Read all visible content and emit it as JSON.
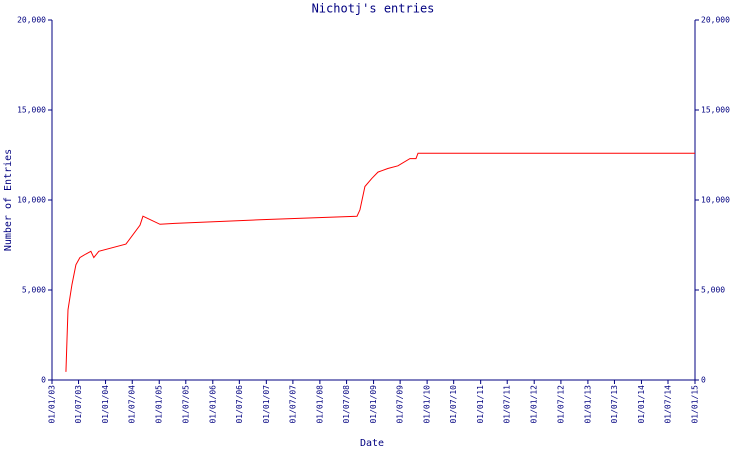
{
  "chart_data": {
    "type": "line",
    "title": "Nichotj's entries",
    "x_label": "Date",
    "y_label": "Number of Entries",
    "x": [
      "2003-04-06",
      "2003-04-13",
      "2003-04-20",
      "2003-05-17",
      "2003-06-13",
      "2003-07-10",
      "2003-08-20",
      "2003-09-23",
      "2003-10-13",
      "2003-11-16",
      "2004-05-19",
      "2004-08-23",
      "2004-09-12",
      "2005-01-06",
      "2005-04-17",
      "2006-11-17",
      "2008-09-10",
      "2008-09-30",
      "2008-11-03",
      "2008-12-20",
      "2009-01-31",
      "2009-04-08",
      "2009-06-16",
      "2009-09-06",
      "2009-10-17",
      "2009-10-31",
      "2015-01-01"
    ],
    "series": [
      {
        "name": "Entries",
        "color": "#ff0000",
        "values": [
          450,
          2200,
          3900,
          5300,
          6400,
          6800,
          7000,
          7150,
          6800,
          7150,
          7550,
          8600,
          9100,
          8650,
          8700,
          8900,
          9100,
          9450,
          10750,
          11200,
          11550,
          11750,
          11900,
          12300,
          12300,
          12600,
          12600
        ]
      }
    ],
    "xlim": [
      "2003-01-01",
      "2015-01-01"
    ],
    "xticks": [
      {
        "value": "2003-01-01",
        "label": "01/01/03"
      },
      {
        "value": "2003-07-01",
        "label": "01/07/03"
      },
      {
        "value": "2004-01-01",
        "label": "01/01/04"
      },
      {
        "value": "2004-07-01",
        "label": "01/07/04"
      },
      {
        "value": "2005-01-01",
        "label": "01/01/05"
      },
      {
        "value": "2005-07-01",
        "label": "01/07/05"
      },
      {
        "value": "2006-01-01",
        "label": "01/01/06"
      },
      {
        "value": "2006-07-01",
        "label": "01/07/06"
      },
      {
        "value": "2007-01-01",
        "label": "01/01/07"
      },
      {
        "value": "2007-07-01",
        "label": "01/07/07"
      },
      {
        "value": "2008-01-01",
        "label": "01/01/08"
      },
      {
        "value": "2008-07-01",
        "label": "01/07/08"
      },
      {
        "value": "2009-01-01",
        "label": "01/01/09"
      },
      {
        "value": "2009-07-01",
        "label": "01/07/09"
      },
      {
        "value": "2010-01-01",
        "label": "01/01/10"
      },
      {
        "value": "2010-07-01",
        "label": "01/07/10"
      },
      {
        "value": "2011-01-01",
        "label": "01/01/11"
      },
      {
        "value": "2011-07-01",
        "label": "01/07/11"
      },
      {
        "value": "2012-01-01",
        "label": "01/01/12"
      },
      {
        "value": "2012-07-01",
        "label": "01/07/12"
      },
      {
        "value": "2013-01-01",
        "label": "01/01/13"
      },
      {
        "value": "2013-07-01",
        "label": "01/07/13"
      },
      {
        "value": "2014-01-01",
        "label": "01/01/14"
      },
      {
        "value": "2014-07-01",
        "label": "01/07/14"
      },
      {
        "value": "2015-01-01",
        "label": "01/01/15"
      }
    ],
    "ylim": [
      0,
      20000
    ],
    "yticks": [
      0,
      {
        "value": 5000,
        "label": "5,000"
      },
      {
        "value": 10000,
        "label": "10,000"
      },
      {
        "value": 15000,
        "label": "15,000"
      },
      {
        "value": 20000,
        "label": "20,000"
      }
    ],
    "axis_color": "#000080"
  }
}
